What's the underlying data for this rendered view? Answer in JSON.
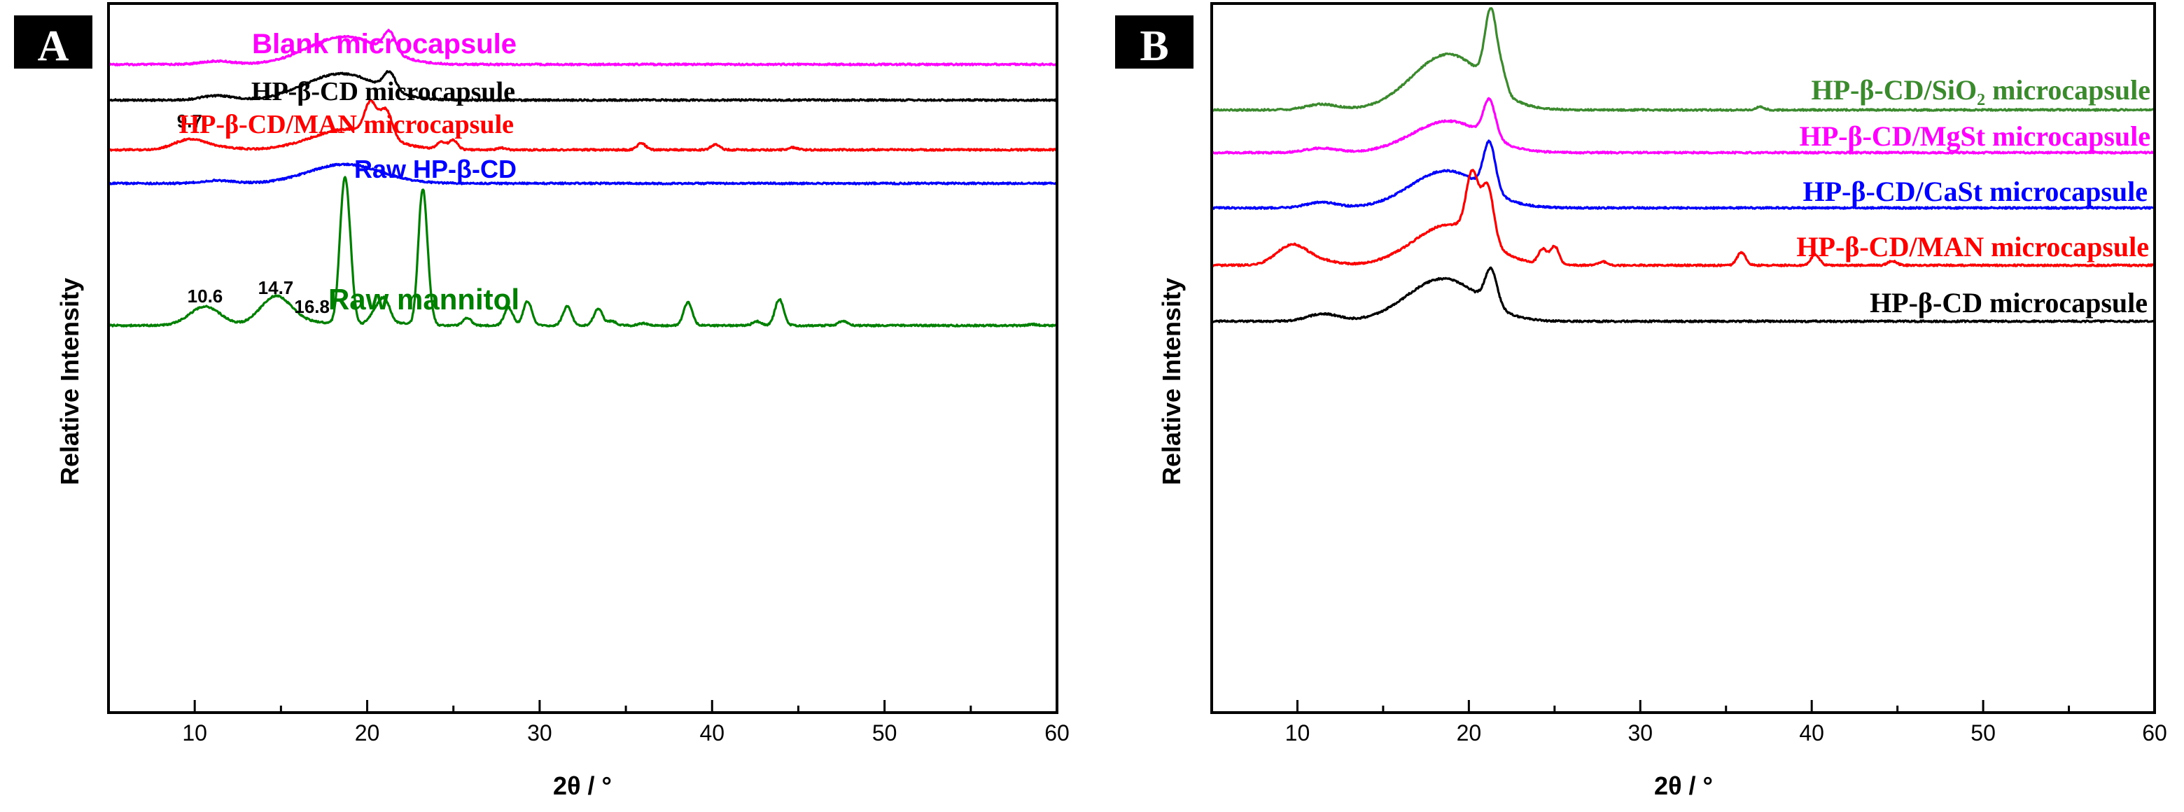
{
  "chart_data": [
    {
      "type": "line",
      "panel_label": "A",
      "xlabel": "2θ / °",
      "ylabel": "Relative Intensity",
      "xlim": [
        5,
        60
      ],
      "x_ticks": [
        10,
        20,
        30,
        40,
        50,
        60
      ],
      "y_ticks_shown": false,
      "legend": "inline labels beside each trace",
      "series": [
        {
          "name": "Blank microcapsule",
          "color": "#ff00ff",
          "baseline": 0.0,
          "peaks": [
            [
              11.3,
              0.11
            ],
            [
              18.7,
              0.95
            ],
            [
              21.3,
              0.7
            ]
          ],
          "annotations": []
        },
        {
          "name": "HP-β-CD microcapsule",
          "color": "#000000",
          "baseline": 0.0,
          "peaks": [
            [
              11.3,
              0.15
            ],
            [
              18.5,
              0.9
            ],
            [
              21.3,
              0.6
            ]
          ],
          "annotations": []
        },
        {
          "name": "HP-β-CD/MAN microcapsule",
          "color": "#ff0000",
          "baseline": 0.0,
          "peaks": [
            [
              9.7,
              0.35
            ],
            [
              11.5,
              0.08
            ],
            [
              18.9,
              0.7
            ],
            [
              20.2,
              1.05
            ],
            [
              21.1,
              0.95
            ],
            [
              24.3,
              0.25
            ],
            [
              25.0,
              0.32
            ],
            [
              27.8,
              0.06
            ],
            [
              35.9,
              0.22
            ],
            [
              40.2,
              0.18
            ],
            [
              44.7,
              0.08
            ]
          ],
          "annotations": [
            {
              "x": 9.7,
              "label": "9.7"
            }
          ]
        },
        {
          "name": "Raw HP-β-CD",
          "color": "#0000ff",
          "baseline": 0.0,
          "peaks": [
            [
              11.3,
              0.1
            ],
            [
              18.7,
              0.65
            ]
          ],
          "annotations": []
        },
        {
          "name": "Raw mannitol",
          "color": "#008000",
          "baseline": 0.0,
          "peaks": [
            [
              10.6,
              0.9
            ],
            [
              14.7,
              1.35
            ],
            [
              16.8,
              0.15
            ],
            [
              18.6,
              4.75
            ],
            [
              18.9,
              3.55
            ],
            [
              20.4,
              0.48
            ],
            [
              21.0,
              1.2
            ],
            [
              22.1,
              0.12
            ],
            [
              23.2,
              6.0
            ],
            [
              23.5,
              1.0
            ],
            [
              25.8,
              0.35
            ],
            [
              28.2,
              0.85
            ],
            [
              29.3,
              1.15
            ],
            [
              31.6,
              0.9
            ],
            [
              33.4,
              0.8
            ],
            [
              34.2,
              0.2
            ],
            [
              36.0,
              0.1
            ],
            [
              38.6,
              1.1
            ],
            [
              42.6,
              0.2
            ],
            [
              43.9,
              1.25
            ],
            [
              47.6,
              0.22
            ],
            [
              58.6,
              0.05
            ]
          ],
          "annotations": [
            {
              "x": 10.6,
              "label": "10.6"
            },
            {
              "x": 14.7,
              "label": "14.7"
            },
            {
              "x": 16.8,
              "label": "16.8"
            }
          ]
        }
      ]
    },
    {
      "type": "line",
      "panel_label": "B",
      "xlabel": "2θ / °",
      "ylabel": "Relative Intensity",
      "xlim": [
        5,
        60
      ],
      "x_ticks": [
        10,
        20,
        30,
        40,
        50,
        60
      ],
      "y_ticks_shown": false,
      "legend": "inline labels beside each trace",
      "series": [
        {
          "name": "HP-β-CD/SiO₂ microcapsule",
          "color": "#3b8a2e",
          "baseline": 0.0,
          "peaks": [
            [
              11.4,
              0.15
            ],
            [
              18.8,
              1.5
            ],
            [
              21.3,
              2.0
            ],
            [
              22.0,
              0.4
            ],
            [
              37.0,
              0.08
            ]
          ],
          "annotations": []
        },
        {
          "name": "HP-β-CD/MgSt microcapsule",
          "color": "#ff00ff",
          "baseline": 0.0,
          "peaks": [
            [
              11.4,
              0.12
            ],
            [
              18.8,
              0.85
            ],
            [
              21.2,
              1.0
            ]
          ],
          "annotations": []
        },
        {
          "name": "HP-β-CD/CaSt microcapsule",
          "color": "#0000ff",
          "baseline": 0.0,
          "peaks": [
            [
              11.4,
              0.15
            ],
            [
              18.7,
              1.0
            ],
            [
              21.2,
              1.3
            ]
          ],
          "annotations": []
        },
        {
          "name": "HP-β-CD/MAN microcapsule",
          "color": "#ff0000",
          "baseline": 0.0,
          "peaks": [
            [
              9.7,
              0.55
            ],
            [
              11.5,
              0.1
            ],
            [
              18.9,
              1.1
            ],
            [
              20.2,
              1.6
            ],
            [
              21.1,
              1.5
            ],
            [
              24.3,
              0.4
            ],
            [
              25.0,
              0.5
            ],
            [
              27.8,
              0.1
            ],
            [
              35.9,
              0.35
            ],
            [
              40.2,
              0.28
            ],
            [
              44.7,
              0.12
            ]
          ],
          "annotations": []
        },
        {
          "name": "HP-β-CD microcapsule",
          "color": "#000000",
          "baseline": 0.0,
          "peaks": [
            [
              11.5,
              0.2
            ],
            [
              18.5,
              1.15
            ],
            [
              21.3,
              0.95
            ]
          ],
          "annotations": []
        }
      ]
    }
  ]
}
